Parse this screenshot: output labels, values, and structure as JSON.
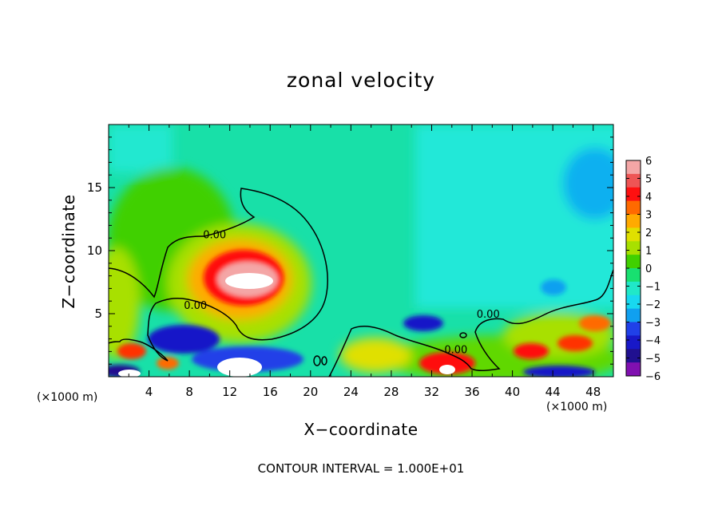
{
  "chart_data": {
    "type": "heatmap",
    "title": "zonal velocity",
    "xlabel": "X−coordinate",
    "ylabel": "Z−coordinate",
    "x_unit_left": "(×1000 m)",
    "x_unit_right": "(×1000 m)",
    "footer": "CONTOUR INTERVAL = 1.000E+01",
    "xlim": [
      0,
      50
    ],
    "ylim": [
      0,
      20
    ],
    "x_ticks": [
      4,
      8,
      12,
      16,
      20,
      24,
      28,
      32,
      36,
      40,
      44,
      48
    ],
    "y_ticks": [
      5,
      10,
      15
    ],
    "x_tick_labels": [
      "4",
      "8",
      "12",
      "16",
      "20",
      "24",
      "28",
      "32",
      "36",
      "40",
      "44",
      "48"
    ],
    "y_tick_labels": [
      "5",
      "10",
      "15"
    ],
    "colorbar": {
      "levels": [
        6,
        5,
        4,
        3,
        2,
        1,
        0,
        -1,
        -2,
        -3,
        -4,
        -5,
        -6
      ],
      "labels": [
        "6",
        "5",
        "4",
        "3",
        "2",
        "1",
        "0",
        "−1",
        "−2",
        "−3",
        "−4",
        "−5",
        "−6"
      ],
      "colors": [
        "#f4a6a6",
        "#ee5555",
        "#ff1010",
        "#ff6a00",
        "#ffaa00",
        "#e0e000",
        "#a8e000",
        "#40d000",
        "#18e070",
        "#20e8c8",
        "#18d8f0",
        "#10a0f0",
        "#2040e8",
        "#1818c8",
        "#201090",
        "#8010b0"
      ]
    },
    "contour_labels": [
      {
        "text": "0.00",
        "x": 10.5,
        "z": 11.1
      },
      {
        "text": "0.00",
        "x": 8.6,
        "z": 5.5
      },
      {
        "text": "0.00",
        "x": 37.6,
        "z": 4.8
      },
      {
        "text": "0.00",
        "x": 34.4,
        "z": 2.0
      }
    ],
    "features": [
      {
        "kind": "max",
        "x": 13,
        "z": 8,
        "value": 6
      },
      {
        "kind": "max",
        "x": 32,
        "z": 1,
        "value": 5
      },
      {
        "kind": "max",
        "x": 43,
        "z": 2,
        "value": 4
      },
      {
        "kind": "max",
        "x": 48,
        "z": 3.5,
        "value": 3
      },
      {
        "kind": "min",
        "x": 15,
        "z": 1.5,
        "value": -5
      },
      {
        "kind": "min",
        "x": 31,
        "z": 4.2,
        "value": -4
      },
      {
        "kind": "min",
        "x": 45,
        "z": 14.5,
        "value": -3
      },
      {
        "kind": "min",
        "x": 7,
        "z": 2.5,
        "value": -4
      }
    ]
  }
}
